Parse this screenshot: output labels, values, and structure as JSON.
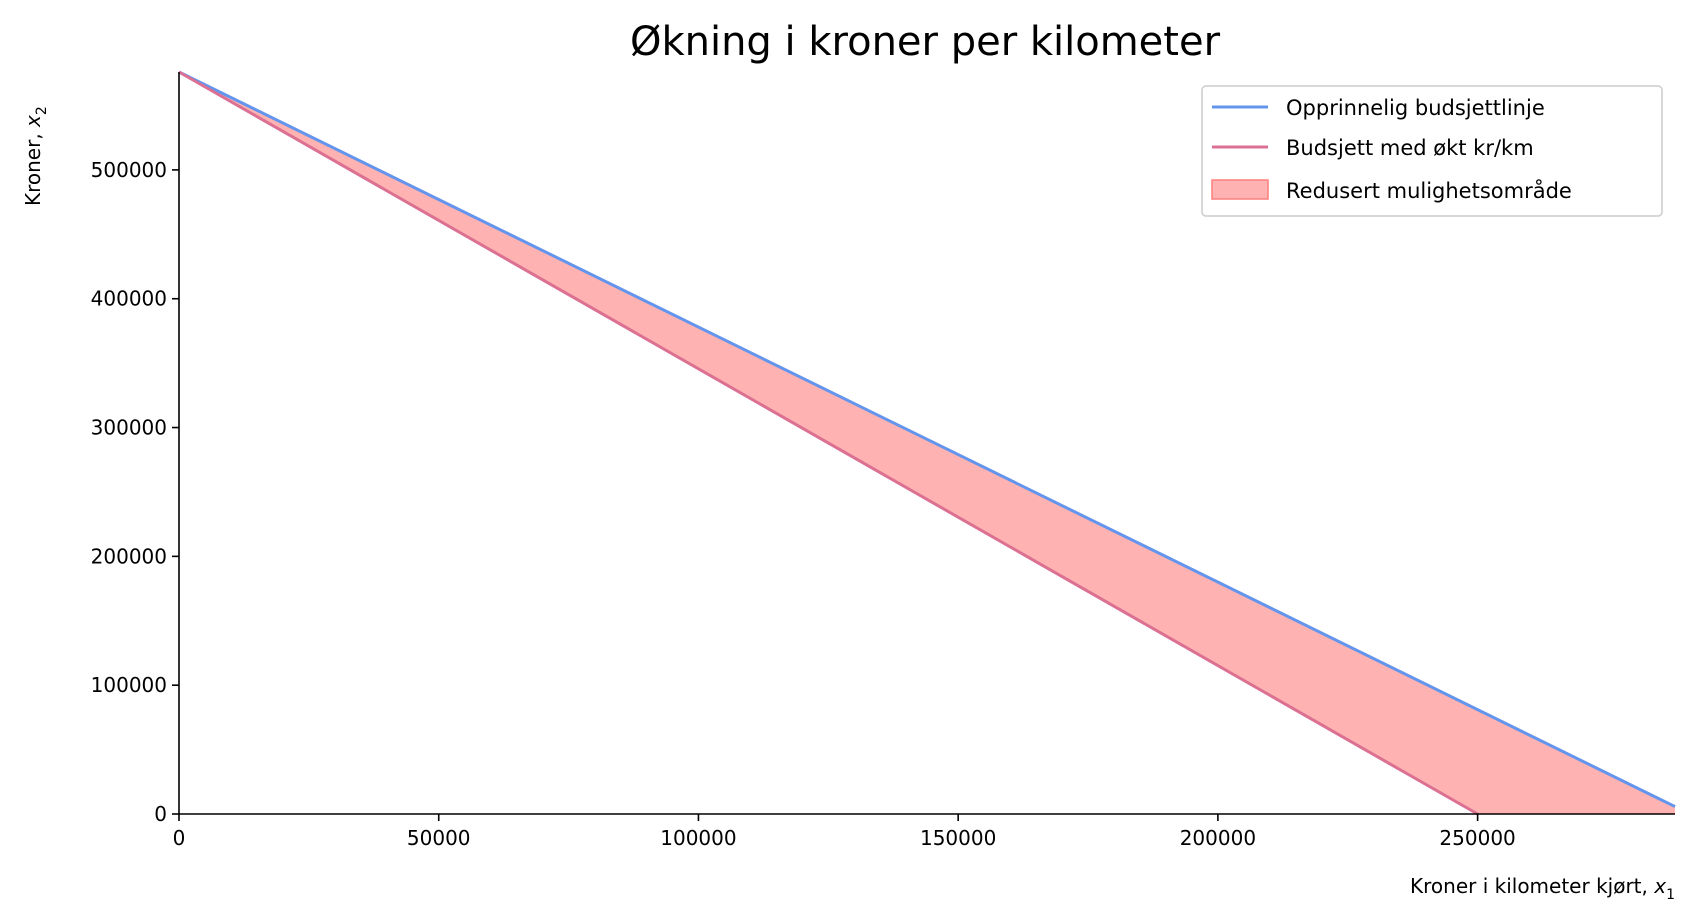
{
  "chart_data": {
    "type": "line",
    "title": "Økning i kroner per kilometer",
    "xlabel": "Kroner i kilometer kjørt, x₁",
    "xlabel_main": "Kroner i kilometer kjørt, ",
    "xlabel_var": "x",
    "xlabel_sub": "1",
    "ylabel": "Kroner, x₂",
    "ylabel_main": "Kroner, ",
    "ylabel_var": "x",
    "ylabel_sub": "2",
    "xlim": [
      0,
      288000
    ],
    "ylim": [
      0,
      576000
    ],
    "xticks": [
      0,
      50000,
      100000,
      150000,
      200000,
      250000
    ],
    "xtick_labels": [
      "0",
      "50000",
      "100000",
      "150000",
      "200000",
      "250000"
    ],
    "yticks": [
      0,
      100000,
      200000,
      300000,
      400000,
      500000
    ],
    "ytick_labels": [
      "0",
      "100000",
      "200000",
      "300000",
      "400000",
      "500000"
    ],
    "grid": false,
    "legend_position": "top-right",
    "series": [
      {
        "name": "Opprinnelig budsjettlinje",
        "color": "#6495ED",
        "x": [
          0,
          288000
        ],
        "y": [
          576000,
          5760
        ]
      },
      {
        "name": "Budsjett med økt kr/km",
        "color": "#DB7093",
        "x": [
          0,
          250000
        ],
        "y": [
          576000,
          0
        ]
      }
    ],
    "fill": {
      "name": "Redusert mulighetsområde",
      "color": "#FF7F7F",
      "between": [
        "Opprinnelig budsjettlinje",
        "Budsjett med økt kr/km"
      ]
    }
  }
}
